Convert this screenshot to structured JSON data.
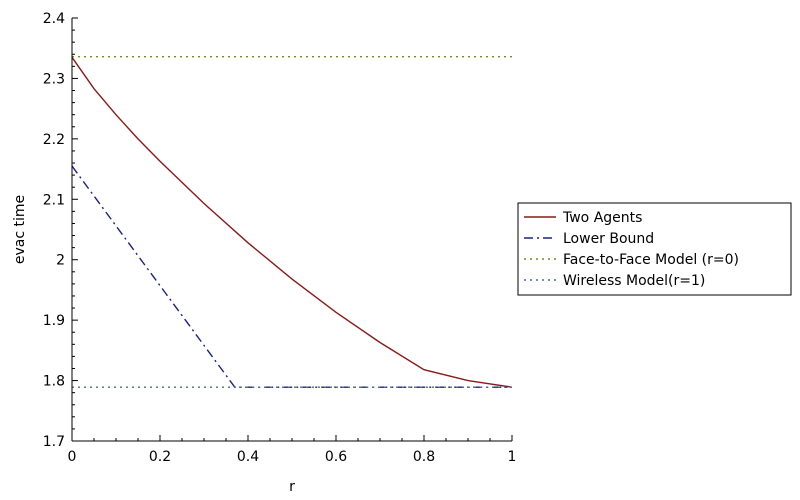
{
  "chart_data": {
    "type": "line",
    "xlabel": "r",
    "ylabel": "evac time",
    "xlim": [
      0,
      1
    ],
    "ylim": [
      1.7,
      2.4
    ],
    "x_ticks": [
      0,
      0.2,
      0.4,
      0.6,
      0.8,
      1
    ],
    "x_tick_labels": [
      "0",
      "0.2",
      "0.4",
      "0.6",
      "0.8",
      "1"
    ],
    "y_ticks": [
      1.7,
      1.8,
      1.9,
      2.0,
      2.1,
      2.2,
      2.3,
      2.4
    ],
    "y_tick_labels": [
      "1.7",
      "1.8",
      "1.9",
      "2",
      "2.1",
      "2.2",
      "2.3",
      "2.4"
    ],
    "grid": false,
    "legend_position": "right",
    "series": [
      {
        "name": "Two Agents",
        "color": "#8b1a1a",
        "style": "solid",
        "x": [
          0,
          0.05,
          0.1,
          0.15,
          0.2,
          0.3,
          0.4,
          0.5,
          0.6,
          0.7,
          0.8,
          0.9,
          1.0
        ],
        "y": [
          2.335,
          2.283,
          2.24,
          2.2,
          2.163,
          2.093,
          2.028,
          1.968,
          1.913,
          1.863,
          1.818,
          1.8,
          1.789
        ]
      },
      {
        "name": "Lower Bound",
        "color": "#1a237e",
        "style": "dashdot",
        "x": [
          0,
          0.37,
          1.0
        ],
        "y": [
          2.155,
          1.789,
          1.789
        ]
      },
      {
        "name": "Face-to-Face Model (r=0)",
        "color": "#6b8e23",
        "style": "dotted",
        "x": [
          0,
          1.0
        ],
        "y": [
          2.336,
          2.336
        ]
      },
      {
        "name": "Wireless Model(r=1)",
        "color": "#4a6a9a",
        "style": "dotted",
        "x": [
          0,
          1.0
        ],
        "y": [
          1.789,
          1.789
        ]
      }
    ]
  }
}
